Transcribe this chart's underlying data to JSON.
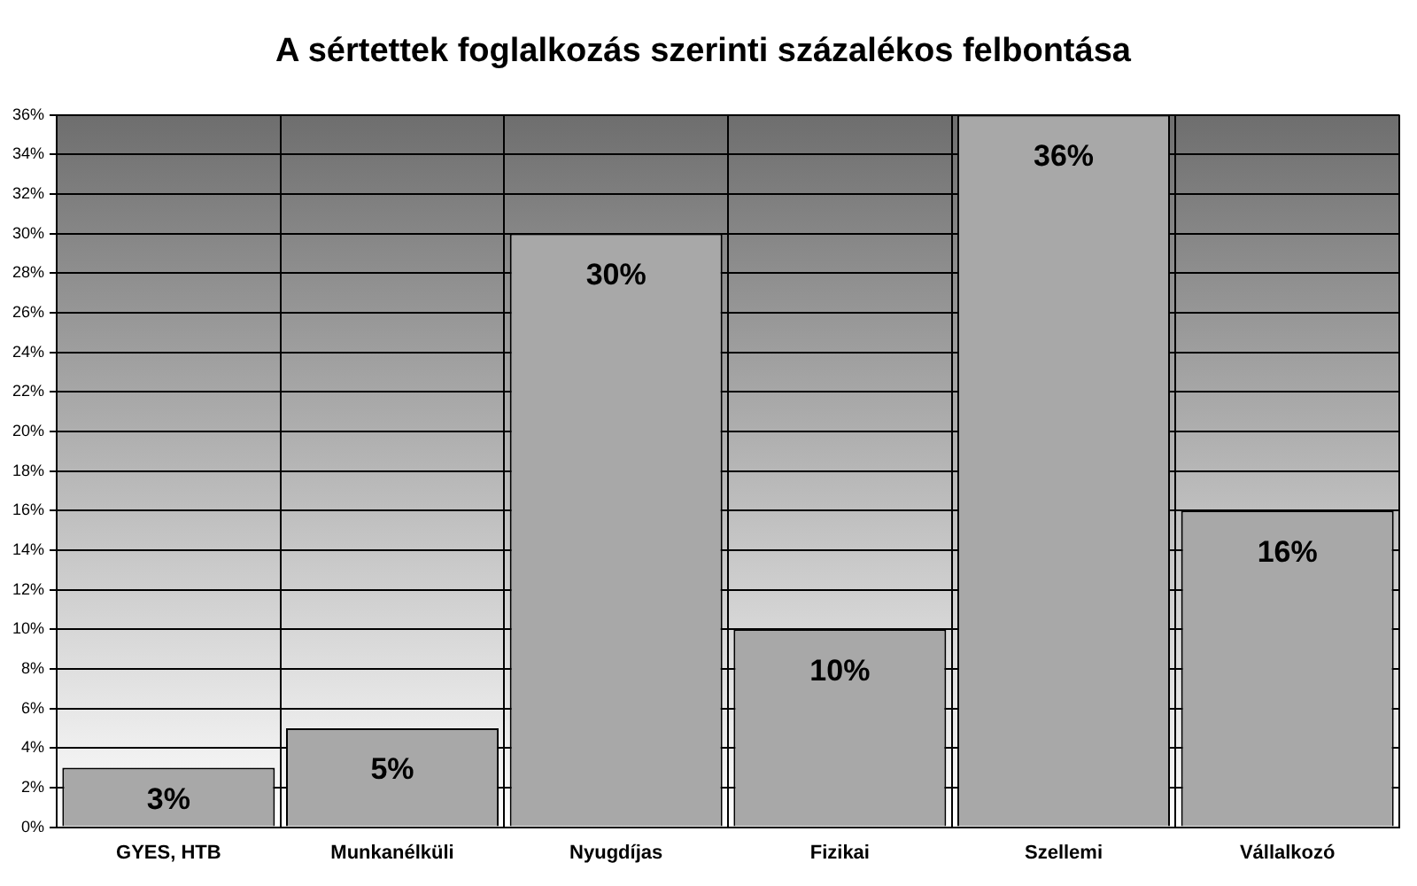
{
  "chart_data": {
    "type": "bar",
    "title": "A sértettek foglalkozás szerinti százalékos felbontása",
    "categories": [
      "GYES, HTB",
      "Munkanélküli",
      "Nyugdíjas",
      "Fizikai",
      "Szellemi",
      "Vállalkozó"
    ],
    "values": [
      3,
      5,
      30,
      10,
      36,
      16
    ],
    "value_labels": [
      "3%",
      "5%",
      "30%",
      "10%",
      "36%",
      "16%"
    ],
    "color": "#a8a8a8",
    "ylim": [
      0,
      36
    ],
    "yticks": [
      {
        "value": 0,
        "label": "0%"
      },
      {
        "value": 2,
        "label": "2%"
      },
      {
        "value": 4,
        "label": "4%"
      },
      {
        "value": 6,
        "label": "6%"
      },
      {
        "value": 8,
        "label": "8%"
      },
      {
        "value": 10,
        "label": "10%"
      },
      {
        "value": 12,
        "label": "12%"
      },
      {
        "value": 14,
        "label": "14%"
      },
      {
        "value": 16,
        "label": "16%"
      },
      {
        "value": 18,
        "label": "18%"
      },
      {
        "value": 20,
        "label": "20%"
      },
      {
        "value": 22,
        "label": "22%"
      },
      {
        "value": 24,
        "label": "24%"
      },
      {
        "value": 26,
        "label": "26%"
      },
      {
        "value": 28,
        "label": "28%"
      },
      {
        "value": 30,
        "label": "30%"
      },
      {
        "value": 32,
        "label": "32%"
      },
      {
        "value": 34,
        "label": "34%"
      },
      {
        "value": 36,
        "label": "36%"
      }
    ],
    "grid": true
  }
}
